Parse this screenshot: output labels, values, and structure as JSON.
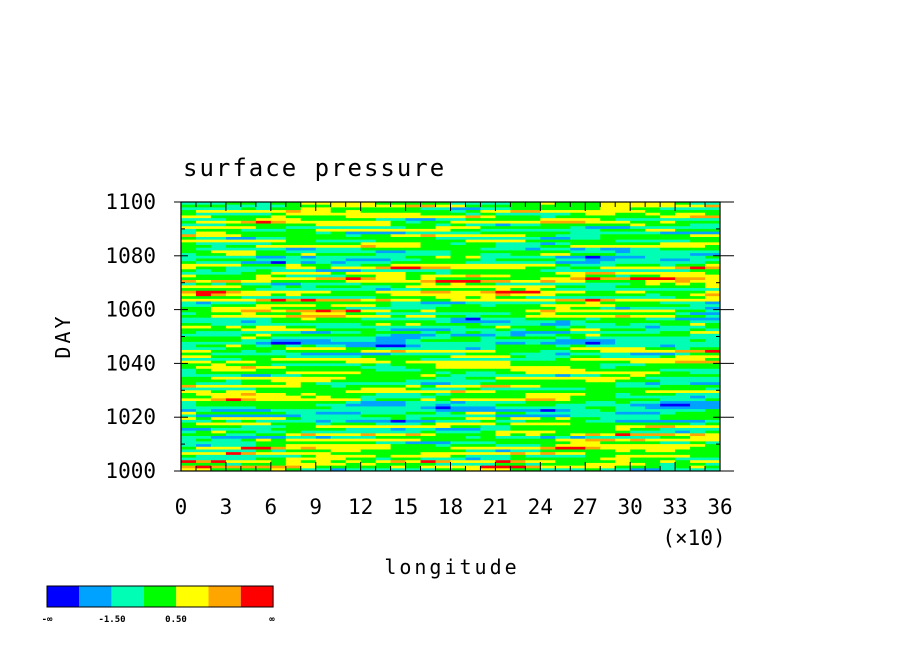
{
  "chart_data": {
    "type": "heatmap",
    "title": "surface pressure",
    "xlabel": "longitude",
    "ylabel": "DAY",
    "x_multiplier": "(×10)",
    "xlim": [
      0,
      36
    ],
    "ylim": [
      1000,
      1100
    ],
    "x_ticks": [
      "0",
      "3",
      "6",
      "9",
      "12",
      "15",
      "18",
      "21",
      "24",
      "27",
      "30",
      "33",
      "36"
    ],
    "y_ticks": [
      "1000",
      "1020",
      "1040",
      "1060",
      "1080",
      "1100"
    ],
    "colorbar": {
      "colors": [
        "#0000ff",
        "#00a2ff",
        "#00ffb4",
        "#00ff00",
        "#ffff00",
        "#ffa500",
        "#ff0000"
      ],
      "labels": [
        "-∞",
        "-1.50",
        "0.50",
        "∞"
      ]
    }
  }
}
